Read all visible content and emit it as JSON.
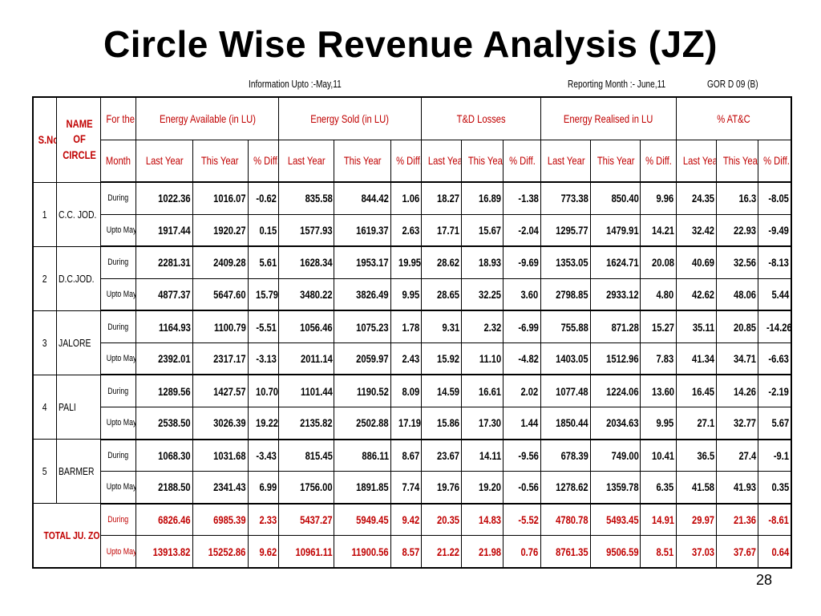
{
  "title": "Circle Wise Revenue Analysis (JZ)",
  "info": {
    "left": "Information Upto :-May,11",
    "middle": "Reporting Month :- June,11",
    "right": "GOR D 09 (B)"
  },
  "header": {
    "sno": "S.No.",
    "name": "NAME OF CIRCLE",
    "for_the": "For the",
    "month": "Month",
    "groups": [
      "Energy Available (in LU)",
      "Energy Sold (in LU)",
      "T&D Losses",
      "Energy Realised in LU",
      "% AT&C"
    ],
    "sub": [
      "Last Year",
      "This Year",
      "% Diff."
    ]
  },
  "rows": [
    {
      "sno": "1",
      "name": "C.C. JOD.",
      "periods": [
        {
          "label": "During",
          "values": [
            "1022.36",
            "1016.07",
            "-0.62",
            "835.58",
            "844.42",
            "1.06",
            "18.27",
            "16.89",
            "-1.38",
            "773.38",
            "850.40",
            "9.96",
            "24.35",
            "16.3",
            "-8.05"
          ]
        },
        {
          "label": "Upto May",
          "values": [
            "1917.44",
            "1920.27",
            "0.15",
            "1577.93",
            "1619.37",
            "2.63",
            "17.71",
            "15.67",
            "-2.04",
            "1295.77",
            "1479.91",
            "14.21",
            "32.42",
            "22.93",
            "-9.49"
          ]
        }
      ]
    },
    {
      "sno": "2",
      "name": "D.C.JOD.",
      "periods": [
        {
          "label": "During",
          "values": [
            "2281.31",
            "2409.28",
            "5.61",
            "1628.34",
            "1953.17",
            "19.95",
            "28.62",
            "18.93",
            "-9.69",
            "1353.05",
            "1624.71",
            "20.08",
            "40.69",
            "32.56",
            "-8.13"
          ]
        },
        {
          "label": "Upto May",
          "values": [
            "4877.37",
            "5647.60",
            "15.79",
            "3480.22",
            "3826.49",
            "9.95",
            "28.65",
            "32.25",
            "3.60",
            "2798.85",
            "2933.12",
            "4.80",
            "42.62",
            "48.06",
            "5.44"
          ]
        }
      ]
    },
    {
      "sno": "3",
      "name": "JALORE",
      "periods": [
        {
          "label": "During",
          "values": [
            "1164.93",
            "1100.79",
            "-5.51",
            "1056.46",
            "1075.23",
            "1.78",
            "9.31",
            "2.32",
            "-6.99",
            "755.88",
            "871.28",
            "15.27",
            "35.11",
            "20.85",
            "-14.26"
          ]
        },
        {
          "label": "Upto May",
          "values": [
            "2392.01",
            "2317.17",
            "-3.13",
            "2011.14",
            "2059.97",
            "2.43",
            "15.92",
            "11.10",
            "-4.82",
            "1403.05",
            "1512.96",
            "7.83",
            "41.34",
            "34.71",
            "-6.63"
          ]
        }
      ]
    },
    {
      "sno": "4",
      "name": "PALI",
      "periods": [
        {
          "label": "During",
          "values": [
            "1289.56",
            "1427.57",
            "10.70",
            "1101.44",
            "1190.52",
            "8.09",
            "14.59",
            "16.61",
            "2.02",
            "1077.48",
            "1224.06",
            "13.60",
            "16.45",
            "14.26",
            "-2.19"
          ]
        },
        {
          "label": "Upto May",
          "values": [
            "2538.50",
            "3026.39",
            "19.22",
            "2135.82",
            "2502.88",
            "17.19",
            "15.86",
            "17.30",
            "1.44",
            "1850.44",
            "2034.63",
            "9.95",
            "27.1",
            "32.77",
            "5.67"
          ]
        }
      ]
    },
    {
      "sno": "5",
      "name": "BARMER",
      "periods": [
        {
          "label": "During",
          "values": [
            "1068.30",
            "1031.68",
            "-3.43",
            "815.45",
            "886.11",
            "8.67",
            "23.67",
            "14.11",
            "-9.56",
            "678.39",
            "749.00",
            "10.41",
            "36.5",
            "27.4",
            "-9.1"
          ]
        },
        {
          "label": "Upto May",
          "values": [
            "2188.50",
            "2341.43",
            "6.99",
            "1756.00",
            "1891.85",
            "7.74",
            "19.76",
            "19.20",
            "-0.56",
            "1278.62",
            "1359.78",
            "6.35",
            "41.58",
            "41.93",
            "0.35"
          ]
        }
      ]
    }
  ],
  "total": {
    "name": "TOTAL JU. ZONE",
    "periods": [
      {
        "label": "During",
        "values": [
          "6826.46",
          "6985.39",
          "2.33",
          "5437.27",
          "5949.45",
          "9.42",
          "20.35",
          "14.83",
          "-5.52",
          "4780.78",
          "5493.45",
          "14.91",
          "29.97",
          "21.36",
          "-8.61"
        ]
      },
      {
        "label": "Upto May",
        "values": [
          "13913.82",
          "15252.86",
          "9.62",
          "10961.11",
          "11900.56",
          "8.57",
          "21.22",
          "21.98",
          "0.76",
          "8761.35",
          "9506.59",
          "8.51",
          "37.03",
          "37.67",
          "0.64"
        ]
      }
    ]
  },
  "page_number": "28",
  "colors": {
    "header_red": "#c00000",
    "total_red": "#c00000"
  }
}
